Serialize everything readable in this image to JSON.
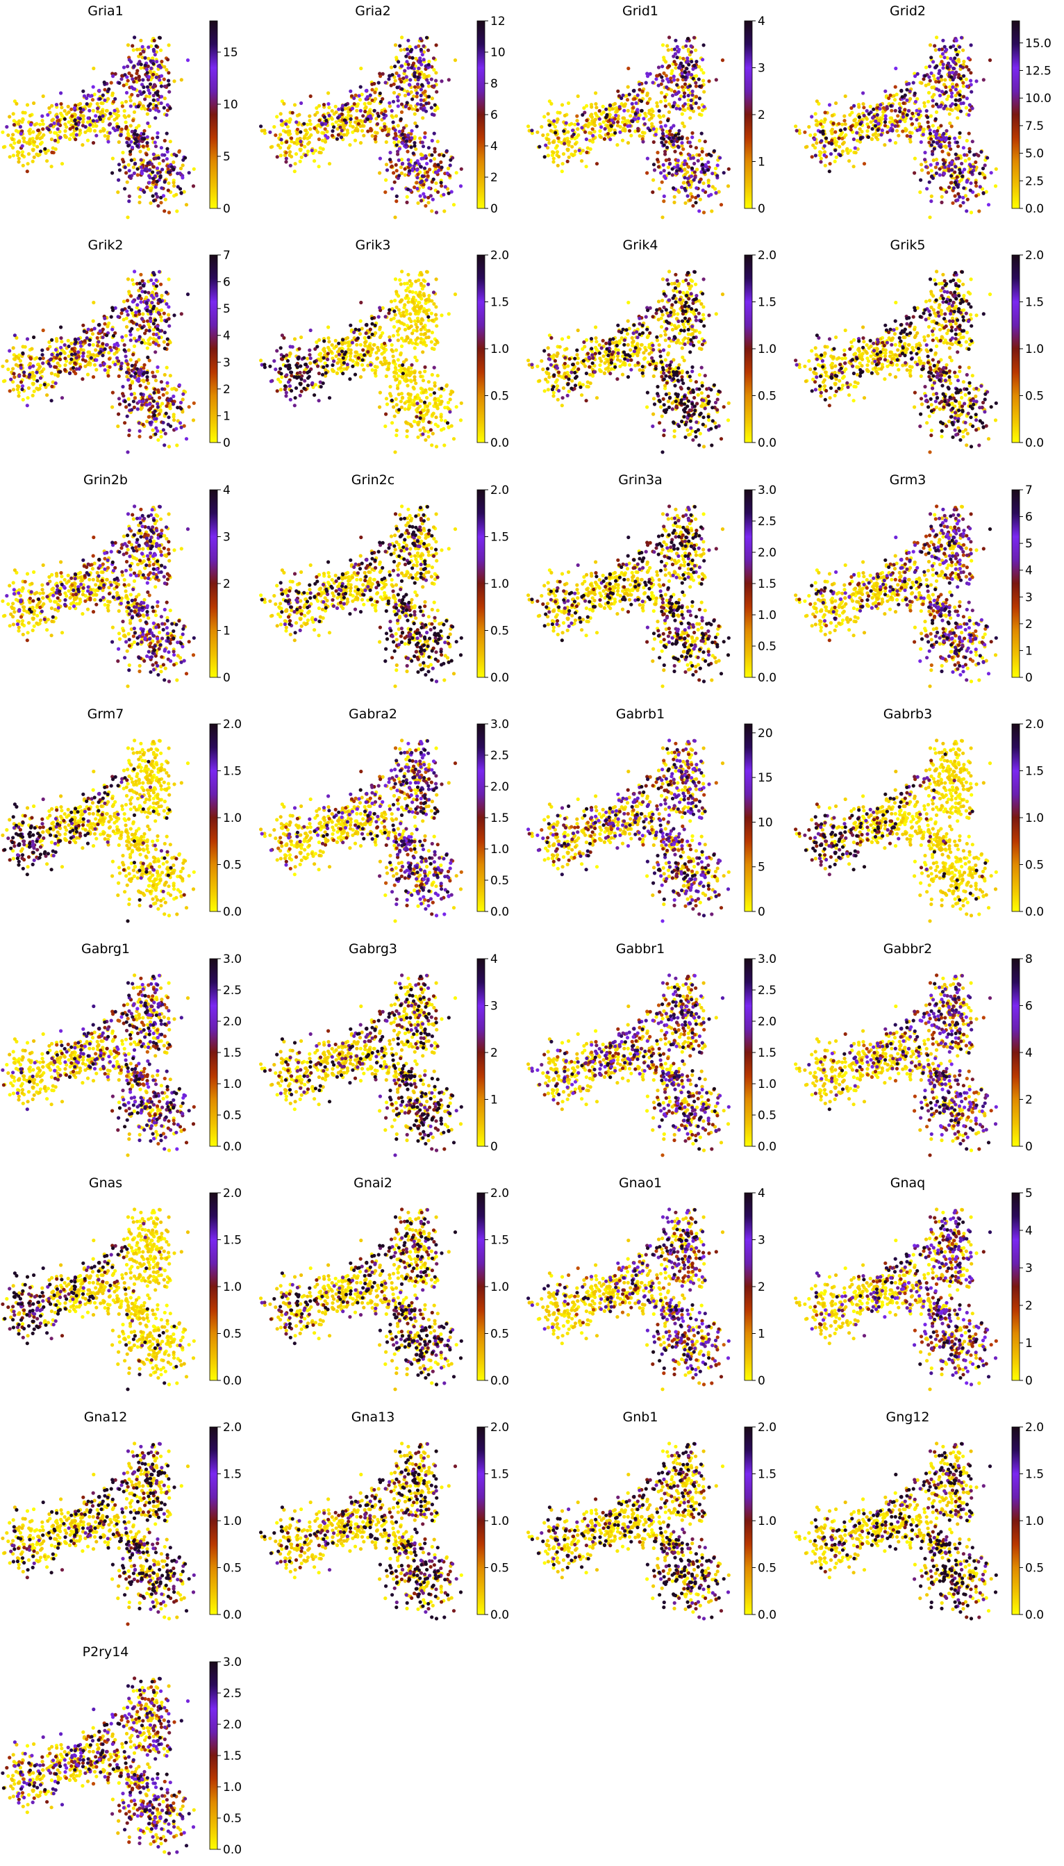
{
  "figure": {
    "columns": 4,
    "colormap": [
      "#ffff00",
      "#f0c000",
      "#e08a00",
      "#b83800",
      "#7a1810",
      "#6a20b0",
      "#7a28f0",
      "#2a0a5a",
      "#1a0a18"
    ],
    "background_color": "#ffffff"
  },
  "chart_data": [
    {
      "type": "scatter",
      "title": "Gria1",
      "colorbar": {
        "min": 0,
        "max": 18,
        "ticks": [
          "0",
          "5",
          "10",
          "15"
        ],
        "tick_values": [
          0,
          5,
          10,
          15
        ]
      },
      "pattern": "hub"
    },
    {
      "type": "scatter",
      "title": "Gria2",
      "colorbar": {
        "min": 0,
        "max": 12,
        "ticks": [
          "0",
          "2",
          "4",
          "6",
          "8",
          "10",
          "12"
        ],
        "tick_values": [
          0,
          2,
          4,
          6,
          8,
          10,
          12
        ]
      },
      "pattern": "hub"
    },
    {
      "type": "scatter",
      "title": "Grid1",
      "colorbar": {
        "min": 0,
        "max": 4,
        "ticks": [
          "0",
          "1",
          "2",
          "3",
          "4"
        ],
        "tick_values": [
          0,
          1,
          2,
          3,
          4
        ]
      },
      "pattern": "hub"
    },
    {
      "type": "scatter",
      "title": "Grid2",
      "colorbar": {
        "min": 0,
        "max": 17,
        "ticks": [
          "0.0",
          "2.5",
          "5.0",
          "7.5",
          "10.0",
          "12.5",
          "15.0"
        ],
        "tick_values": [
          0,
          2.5,
          5,
          7.5,
          10,
          12.5,
          15
        ]
      },
      "pattern": "broad"
    },
    {
      "type": "scatter",
      "title": "Grik2",
      "colorbar": {
        "min": 0,
        "max": 7,
        "ticks": [
          "0",
          "1",
          "2",
          "3",
          "4",
          "5",
          "6",
          "7"
        ],
        "tick_values": [
          0,
          1,
          2,
          3,
          4,
          5,
          6,
          7
        ]
      },
      "pattern": "broad"
    },
    {
      "type": "scatter",
      "title": "Grik3",
      "colorbar": {
        "min": 0,
        "max": 2,
        "ticks": [
          "0.0",
          "0.5",
          "1.0",
          "1.5",
          "2.0"
        ],
        "tick_values": [
          0,
          0.5,
          1,
          1.5,
          2
        ]
      },
      "pattern": "left"
    },
    {
      "type": "scatter",
      "title": "Grik4",
      "colorbar": {
        "min": 0,
        "max": 2,
        "ticks": [
          "0.0",
          "0.5",
          "1.0",
          "1.5",
          "2.0"
        ],
        "tick_values": [
          0,
          0.5,
          1,
          1.5,
          2
        ]
      },
      "pattern": "sparse"
    },
    {
      "type": "scatter",
      "title": "Grik5",
      "colorbar": {
        "min": 0,
        "max": 2,
        "ticks": [
          "0.0",
          "0.5",
          "1.0",
          "1.5",
          "2.0"
        ],
        "tick_values": [
          0,
          0.5,
          1,
          1.5,
          2
        ]
      },
      "pattern": "sparse"
    },
    {
      "type": "scatter",
      "title": "Grin2b",
      "colorbar": {
        "min": 0,
        "max": 4,
        "ticks": [
          "0",
          "1",
          "2",
          "3",
          "4"
        ],
        "tick_values": [
          0,
          1,
          2,
          3,
          4
        ]
      },
      "pattern": "hub"
    },
    {
      "type": "scatter",
      "title": "Grin2c",
      "colorbar": {
        "min": 0,
        "max": 2,
        "ticks": [
          "0.0",
          "0.5",
          "1.0",
          "1.5",
          "2.0"
        ],
        "tick_values": [
          0,
          0.5,
          1,
          1.5,
          2
        ]
      },
      "pattern": "sparse"
    },
    {
      "type": "scatter",
      "title": "Grin3a",
      "colorbar": {
        "min": 0,
        "max": 3,
        "ticks": [
          "0.0",
          "0.5",
          "1.0",
          "1.5",
          "2.0",
          "2.5",
          "3.0"
        ],
        "tick_values": [
          0,
          0.5,
          1,
          1.5,
          2,
          2.5,
          3
        ]
      },
      "pattern": "sparse"
    },
    {
      "type": "scatter",
      "title": "Grm3",
      "colorbar": {
        "min": 0,
        "max": 7,
        "ticks": [
          "0",
          "1",
          "2",
          "3",
          "4",
          "5",
          "6",
          "7"
        ],
        "tick_values": [
          0,
          1,
          2,
          3,
          4,
          5,
          6,
          7
        ]
      },
      "pattern": "hub"
    },
    {
      "type": "scatter",
      "title": "Grm7",
      "colorbar": {
        "min": 0,
        "max": 2,
        "ticks": [
          "0.0",
          "0.5",
          "1.0",
          "1.5",
          "2.0"
        ],
        "tick_values": [
          0,
          0.5,
          1,
          1.5,
          2
        ]
      },
      "pattern": "left"
    },
    {
      "type": "scatter",
      "title": "Gabra2",
      "colorbar": {
        "min": 0,
        "max": 3,
        "ticks": [
          "0.0",
          "0.5",
          "1.0",
          "1.5",
          "2.0",
          "2.5",
          "3.0"
        ],
        "tick_values": [
          0,
          0.5,
          1,
          1.5,
          2,
          2.5,
          3
        ]
      },
      "pattern": "hub"
    },
    {
      "type": "scatter",
      "title": "Gabrb1",
      "colorbar": {
        "min": 0,
        "max": 21,
        "ticks": [
          "0",
          "5",
          "10",
          "15",
          "20"
        ],
        "tick_values": [
          0,
          5,
          10,
          15,
          20
        ]
      },
      "pattern": "broad"
    },
    {
      "type": "scatter",
      "title": "Gabrb3",
      "colorbar": {
        "min": 0,
        "max": 2,
        "ticks": [
          "0.0",
          "0.5",
          "1.0",
          "1.5",
          "2.0"
        ],
        "tick_values": [
          0,
          0.5,
          1,
          1.5,
          2
        ]
      },
      "pattern": "left"
    },
    {
      "type": "scatter",
      "title": "Gabrg1",
      "colorbar": {
        "min": 0,
        "max": 3,
        "ticks": [
          "0.0",
          "0.5",
          "1.0",
          "1.5",
          "2.0",
          "2.5",
          "3.0"
        ],
        "tick_values": [
          0,
          0.5,
          1,
          1.5,
          2,
          2.5,
          3
        ]
      },
      "pattern": "hub"
    },
    {
      "type": "scatter",
      "title": "Gabrg3",
      "colorbar": {
        "min": 0,
        "max": 4,
        "ticks": [
          "0",
          "1",
          "2",
          "3",
          "4"
        ],
        "tick_values": [
          0,
          1,
          2,
          3,
          4
        ]
      },
      "pattern": "sparse"
    },
    {
      "type": "scatter",
      "title": "Gabbr1",
      "colorbar": {
        "min": 0,
        "max": 3,
        "ticks": [
          "0.0",
          "0.5",
          "1.0",
          "1.5",
          "2.0",
          "2.5",
          "3.0"
        ],
        "tick_values": [
          0,
          0.5,
          1,
          1.5,
          2,
          2.5,
          3
        ]
      },
      "pattern": "broad"
    },
    {
      "type": "scatter",
      "title": "Gabbr2",
      "colorbar": {
        "min": 0,
        "max": 8,
        "ticks": [
          "0",
          "2",
          "4",
          "6",
          "8"
        ],
        "tick_values": [
          0,
          2,
          4,
          6,
          8
        ]
      },
      "pattern": "hub"
    },
    {
      "type": "scatter",
      "title": "Gnas",
      "colorbar": {
        "min": 0,
        "max": 2,
        "ticks": [
          "0.0",
          "0.5",
          "1.0",
          "1.5",
          "2.0"
        ],
        "tick_values": [
          0,
          0.5,
          1,
          1.5,
          2
        ]
      },
      "pattern": "left"
    },
    {
      "type": "scatter",
      "title": "Gnai2",
      "colorbar": {
        "min": 0,
        "max": 2,
        "ticks": [
          "0.0",
          "0.5",
          "1.0",
          "1.5",
          "2.0"
        ],
        "tick_values": [
          0,
          0.5,
          1,
          1.5,
          2
        ]
      },
      "pattern": "sparse"
    },
    {
      "type": "scatter",
      "title": "Gnao1",
      "colorbar": {
        "min": 0,
        "max": 4,
        "ticks": [
          "0",
          "1",
          "2",
          "3",
          "4"
        ],
        "tick_values": [
          0,
          1,
          2,
          3,
          4
        ]
      },
      "pattern": "hub"
    },
    {
      "type": "scatter",
      "title": "Gnaq",
      "colorbar": {
        "min": 0,
        "max": 5,
        "ticks": [
          "0",
          "1",
          "2",
          "3",
          "4",
          "5"
        ],
        "tick_values": [
          0,
          1,
          2,
          3,
          4,
          5
        ]
      },
      "pattern": "hub"
    },
    {
      "type": "scatter",
      "title": "Gna12",
      "colorbar": {
        "min": 0,
        "max": 2,
        "ticks": [
          "0.0",
          "0.5",
          "1.0",
          "1.5",
          "2.0"
        ],
        "tick_values": [
          0,
          0.5,
          1,
          1.5,
          2
        ]
      },
      "pattern": "sparse"
    },
    {
      "type": "scatter",
      "title": "Gna13",
      "colorbar": {
        "min": 0,
        "max": 2,
        "ticks": [
          "0.0",
          "0.5",
          "1.0",
          "1.5",
          "2.0"
        ],
        "tick_values": [
          0,
          0.5,
          1,
          1.5,
          2
        ]
      },
      "pattern": "sparse"
    },
    {
      "type": "scatter",
      "title": "Gnb1",
      "colorbar": {
        "min": 0,
        "max": 2,
        "ticks": [
          "0.0",
          "0.5",
          "1.0",
          "1.5",
          "2.0"
        ],
        "tick_values": [
          0,
          0.5,
          1,
          1.5,
          2
        ]
      },
      "pattern": "sparse"
    },
    {
      "type": "scatter",
      "title": "Gng12",
      "colorbar": {
        "min": 0,
        "max": 2,
        "ticks": [
          "0.0",
          "0.5",
          "1.0",
          "1.5",
          "2.0"
        ],
        "tick_values": [
          0,
          0.5,
          1,
          1.5,
          2
        ]
      },
      "pattern": "sparse"
    },
    {
      "type": "scatter",
      "title": "P2ry14",
      "colorbar": {
        "min": 0,
        "max": 3,
        "ticks": [
          "0.0",
          "0.5",
          "1.0",
          "1.5",
          "2.0",
          "2.5",
          "3.0"
        ],
        "tick_values": [
          0,
          0.5,
          1,
          1.5,
          2,
          2.5,
          3
        ]
      },
      "pattern": "broad"
    }
  ]
}
